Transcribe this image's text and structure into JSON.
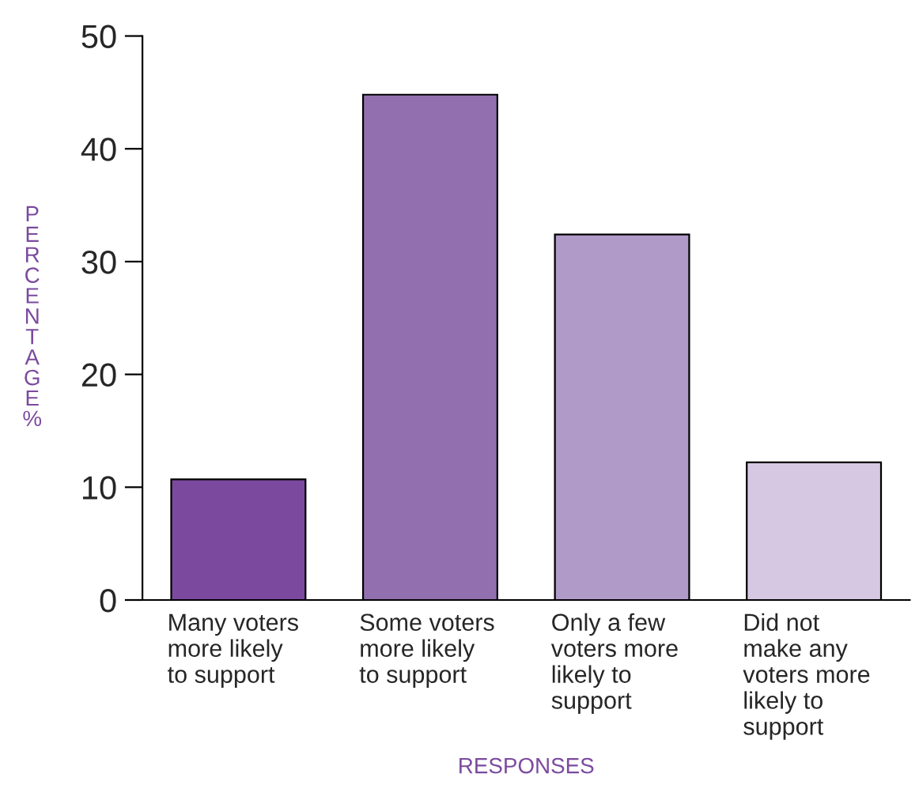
{
  "chart_data": {
    "type": "bar",
    "xlabel": "RESPONSES",
    "ylabel": "PERCENTAGE %",
    "categories": [
      "Many voters\nmore likely\nto support",
      "Some voters\nmore likely\nto support",
      "Only a few\nvoters more\nlikely to\nsupport",
      "Did not\nmake any\nvoters more\nlikely to\nsupport"
    ],
    "values": [
      10.7,
      44.8,
      32.4,
      12.2
    ],
    "colors": [
      "#7b4a9e",
      "#9270b0",
      "#b09ac8",
      "#d6c8e2"
    ],
    "ylim": [
      0,
      50
    ],
    "yticks": [
      0,
      10,
      20,
      30,
      40,
      50
    ],
    "grid": false,
    "legend": false
  }
}
